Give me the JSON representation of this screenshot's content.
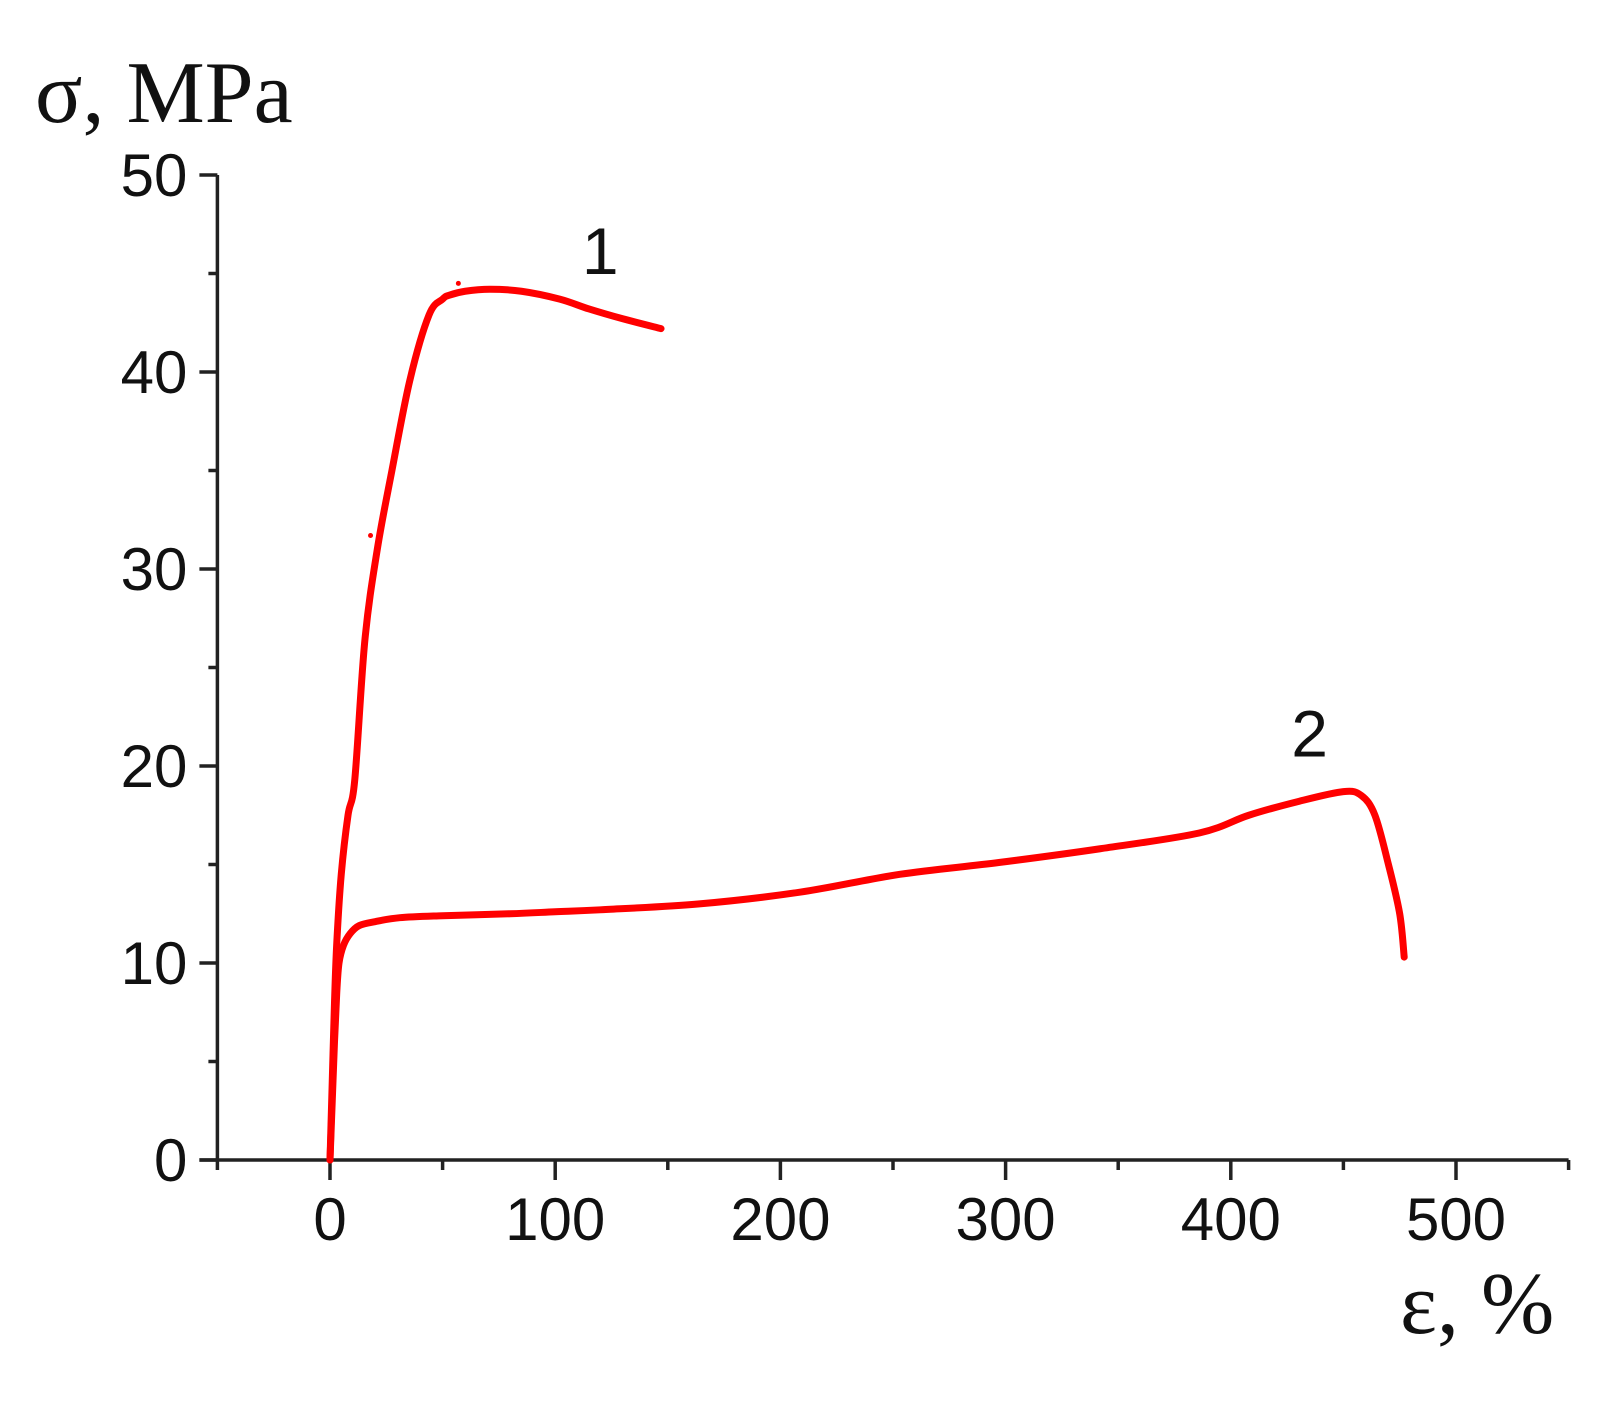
{
  "chart_data": {
    "type": "line",
    "title": "",
    "xlabel": "ε, %",
    "ylabel": "σ, MPa",
    "xlim": [
      -50,
      550
    ],
    "ylim": [
      0,
      50
    ],
    "x_ticks": [
      0,
      100,
      200,
      300,
      400,
      500
    ],
    "x_tick_labels": [
      "0",
      "100",
      "200",
      "300",
      "400",
      "500"
    ],
    "x_minor_ticks": [
      -50,
      50,
      150,
      250,
      350,
      450,
      550
    ],
    "y_ticks": [
      0,
      10,
      20,
      30,
      40,
      50
    ],
    "y_tick_labels": [
      "0",
      "10",
      "20",
      "30",
      "40",
      "50"
    ],
    "y_minor_ticks": [
      5,
      15,
      25,
      35,
      45
    ],
    "grid": false,
    "legend": "none (curves labeled inline)",
    "series": [
      {
        "name": "1",
        "color": "#ff0000",
        "label_position": {
          "x": 120,
          "y": 46.2
        },
        "x": [
          0,
          1,
          2,
          3,
          5,
          8,
          11,
          15.5,
          21,
          27.5,
          35.5,
          44,
          50,
          53,
          60,
          71,
          85,
          102,
          115,
          130,
          147
        ],
        "y": [
          0,
          4,
          8,
          11,
          14.5,
          17.5,
          19.3,
          26.4,
          31.0,
          35.0,
          39.6,
          42.9,
          43.7,
          43.9,
          44.1,
          44.2,
          44.1,
          43.7,
          43.2,
          42.7,
          42.2
        ]
      },
      {
        "name": "2",
        "color": "#ff0000",
        "label_position": {
          "x": 435,
          "y": 21.7
        },
        "x": [
          0,
          1,
          2,
          3,
          4,
          6,
          9,
          13,
          20,
          31,
          50,
          80,
          100,
          120,
          164,
          209,
          253,
          297,
          342,
          386,
          408,
          430,
          450,
          458,
          464,
          470,
          475,
          477
        ],
        "y": [
          0,
          3,
          6,
          8.5,
          10.0,
          10.9,
          11.5,
          11.9,
          12.1,
          12.3,
          12.4,
          12.5,
          12.6,
          12.7,
          13.0,
          13.6,
          14.5,
          15.1,
          15.8,
          16.6,
          17.5,
          18.2,
          18.7,
          18.5,
          17.5,
          15.0,
          12.5,
          10.3
        ]
      }
    ],
    "stray_marks": [
      {
        "x": 18,
        "y": 31.7
      },
      {
        "x": 57,
        "y": 44.5
      }
    ]
  },
  "labels": {
    "y_axis_title": "σ, MPa",
    "x_axis_title": "ε, %",
    "curve_1": "1",
    "curve_2": "2"
  }
}
